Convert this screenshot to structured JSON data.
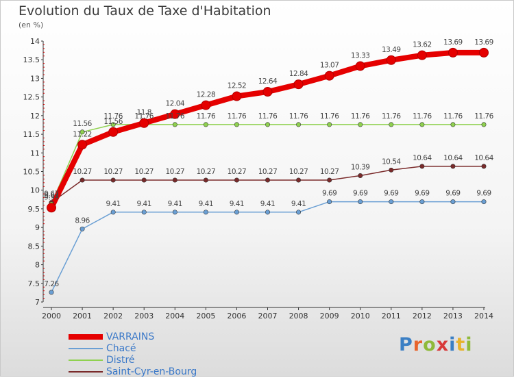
{
  "header": {
    "title": "Evolution du Taux de Taxe d'Habitation",
    "subtitle": "(en %)"
  },
  "logo": {
    "text": "Proxiti",
    "colors": [
      "#3b7fc4",
      "#e8642c",
      "#8fba3a",
      "#d83a3a",
      "#3b7fc4",
      "#e8b32c",
      "#8fba3a"
    ]
  },
  "chart_data": {
    "type": "line",
    "title": "Evolution du Taux de Taxe d'Habitation",
    "subtitle": "(en %)",
    "xlabel": "",
    "ylabel": "",
    "categories": [
      "2000",
      "2001",
      "2002",
      "2003",
      "2004",
      "2005",
      "2006",
      "2007",
      "2008",
      "2009",
      "2010",
      "2011",
      "2012",
      "2013",
      "2014"
    ],
    "ylim": [
      7,
      14
    ],
    "yticks": [
      "7",
      "7.5",
      "8",
      "8.5",
      "9",
      "9.5",
      "10",
      "10.5",
      "11",
      "11.5",
      "12",
      "12.5",
      "13",
      "13.5",
      "14"
    ],
    "grid": false,
    "legend_position": "bottom-left",
    "series": [
      {
        "name": "VARRAINS",
        "color": "#e50000",
        "values": [
          9.53,
          11.22,
          11.56,
          11.8,
          12.04,
          12.28,
          12.52,
          12.64,
          12.84,
          13.07,
          13.33,
          13.49,
          13.62,
          13.69,
          13.69
        ],
        "labels": [
          "9.53",
          "11.22",
          "11.56",
          "11.8",
          "12.04",
          "12.28",
          "12.52",
          "12.64",
          "12.84",
          "13.07",
          "13.33",
          "13.49",
          "13.62",
          "13.69",
          "13.69"
        ]
      },
      {
        "name": "Chacé",
        "color": "#6a9fd4",
        "values": [
          7.26,
          8.96,
          9.41,
          9.41,
          9.41,
          9.41,
          9.41,
          9.41,
          9.41,
          9.69,
          9.69,
          9.69,
          9.69,
          9.69,
          9.69
        ],
        "labels": [
          "7.26",
          "8.96",
          "9.41",
          "9.41",
          "9.41",
          "9.41",
          "9.41",
          "9.41",
          "9.41",
          "9.69",
          "9.69",
          "9.69",
          "9.69",
          "9.69",
          "9.69"
        ]
      },
      {
        "name": "Distré",
        "color": "#8fd14f",
        "values": [
          9.63,
          11.56,
          11.76,
          11.76,
          11.76,
          11.76,
          11.76,
          11.76,
          11.76,
          11.76,
          11.76,
          11.76,
          11.76,
          11.76,
          11.76
        ],
        "labels": [
          "9.63",
          "11.56",
          "11.76",
          "11.76",
          "11.76",
          "11.76",
          "11.76",
          "11.76",
          "11.76",
          "11.76",
          "11.76",
          "11.76",
          "11.76",
          "11.76",
          "11.76"
        ]
      },
      {
        "name": "Saint-Cyr-en-Bourg",
        "color": "#7a2a2a",
        "values": [
          9.67,
          10.27,
          10.27,
          10.27,
          10.27,
          10.27,
          10.27,
          10.27,
          10.27,
          10.27,
          10.39,
          10.54,
          10.64,
          10.64,
          10.64
        ],
        "labels": [
          "9.67",
          "10.27",
          "10.27",
          "10.27",
          "10.27",
          "10.27",
          "10.27",
          "10.27",
          "10.27",
          "10.27",
          "10.39",
          "10.54",
          "10.64",
          "10.64",
          "10.64"
        ]
      }
    ]
  }
}
